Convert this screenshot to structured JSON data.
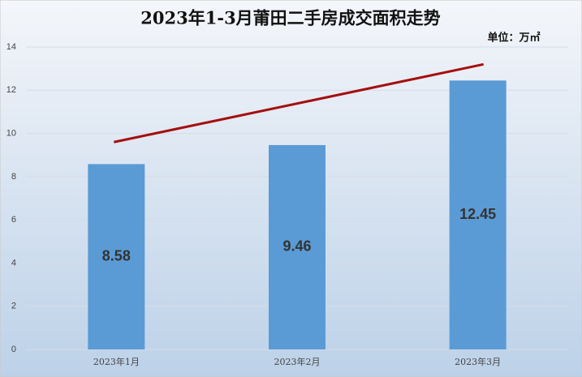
{
  "chart_data": {
    "type": "bar",
    "title": "2023年1-3月莆田二手房成交面积走势",
    "unit_label": "单位：万㎡",
    "categories": [
      "2023年1月",
      "2023年2月",
      "2023年3月"
    ],
    "values": [
      8.58,
      9.46,
      12.45
    ],
    "color": "#5b9bd5",
    "ylim": [
      0,
      14
    ],
    "yticks": [
      0,
      2,
      4,
      6,
      8,
      10,
      12,
      14
    ],
    "grid": true,
    "trend_line": {
      "values": [
        9.6,
        13.2
      ],
      "color": "#a50f0f"
    }
  }
}
